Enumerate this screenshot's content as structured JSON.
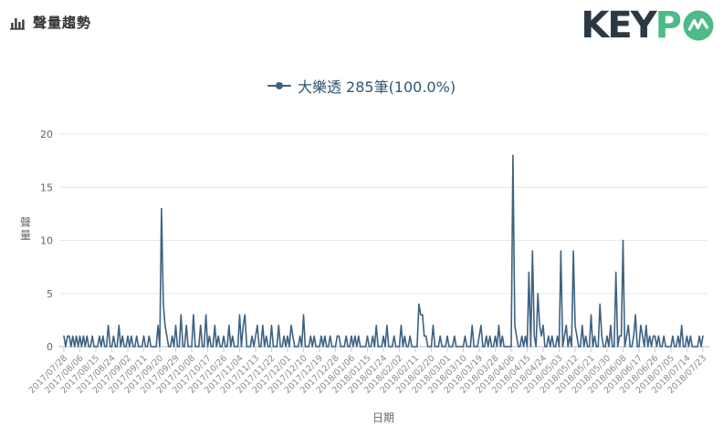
{
  "header": {
    "title": "聲量趨勢",
    "icon": "bar-chart-icon"
  },
  "logo": {
    "text_dark": "KEY",
    "text_green": "P",
    "green": "#4dba87",
    "dark": "#2c3944"
  },
  "legend": {
    "series_label": "大樂透 285筆(100.0%)",
    "marker_color": "#3d6282"
  },
  "colors": {
    "line": "#3d6282",
    "grid": "#e8e8e8",
    "axis": "#ccd6e0",
    "x_tick_label": "#8a8a8a",
    "y_tick_label": "#666666",
    "axis_title": "#666666"
  },
  "chart_data": {
    "type": "line",
    "title": "聲量趨勢",
    "xlabel": "日期",
    "ylabel": "聲量",
    "ylim": [
      0,
      20
    ],
    "y_ticks": [
      0,
      5,
      10,
      15,
      20
    ],
    "grid": true,
    "legend_position": "top-center",
    "x_start": "2017/07/28",
    "x_end": "2018/07/23",
    "tick_interval_days": 9,
    "x_tick_labels": [
      "2017/07/28",
      "2017/08/06",
      "2017/08/15",
      "2017/08/24",
      "2017/09/02",
      "2017/09/11",
      "2017/09/20",
      "2017/09/29",
      "2017/10/08",
      "2017/10/17",
      "2017/10/26",
      "2017/11/04",
      "2017/11/13",
      "2017/11/22",
      "2017/12/01",
      "2017/12/10",
      "2017/12/19",
      "2017/12/28",
      "2018/01/06",
      "2018/01/15",
      "2018/01/24",
      "2018/02/02",
      "2018/02/11",
      "2018/02/20",
      "2018/03/01",
      "2018/03/10",
      "2018/03/19",
      "2018/03/28",
      "2018/04/06",
      "2018/04/15",
      "2018/04/24",
      "2018/05/03",
      "2018/05/12",
      "2018/05/21",
      "2018/05/30",
      "2018/06/08",
      "2018/06/17",
      "2018/06/26",
      "2018/07/05",
      "2018/07/14",
      "2018/07/23"
    ],
    "series": [
      {
        "name": "大樂透",
        "count_label": "285筆(100.0%)",
        "total": 285,
        "color": "#3d6282",
        "values": [
          1,
          0,
          1,
          1,
          0,
          1,
          0,
          1,
          0,
          1,
          0,
          1,
          0,
          1,
          0,
          0,
          1,
          0,
          0,
          0,
          1,
          0,
          1,
          0,
          0,
          2,
          0,
          0,
          1,
          0,
          0,
          2,
          0,
          1,
          0,
          0,
          1,
          0,
          1,
          0,
          0,
          1,
          0,
          0,
          0,
          1,
          0,
          0,
          1,
          0,
          0,
          0,
          0,
          2,
          0,
          13,
          4,
          2,
          1,
          0,
          0,
          1,
          0,
          2,
          0,
          0,
          3,
          0,
          0,
          2,
          0,
          0,
          0,
          3,
          0,
          0,
          0,
          2,
          0,
          0,
          3,
          0,
          1,
          0,
          0,
          2,
          0,
          1,
          0,
          0,
          1,
          0,
          0,
          2,
          0,
          1,
          0,
          0,
          0,
          3,
          0,
          2,
          3,
          0,
          0,
          0,
          1,
          0,
          1,
          2,
          0,
          0,
          2,
          0,
          1,
          0,
          0,
          2,
          0,
          0,
          0,
          2,
          0,
          0,
          1,
          0,
          1,
          0,
          2,
          1,
          0,
          0,
          0,
          1,
          0,
          3,
          0,
          0,
          0,
          1,
          0,
          1,
          0,
          0,
          0,
          1,
          0,
          1,
          0,
          0,
          1,
          0,
          0,
          0,
          1,
          1,
          0,
          0,
          0,
          1,
          0,
          0,
          1,
          0,
          1,
          0,
          1,
          0,
          0,
          0,
          0,
          1,
          0,
          0,
          1,
          0,
          2,
          0,
          0,
          0,
          1,
          0,
          2,
          0,
          0,
          0,
          1,
          0,
          0,
          0,
          2,
          0,
          1,
          0,
          0,
          1,
          0,
          0,
          0,
          0,
          4,
          3,
          3,
          1,
          1,
          0,
          0,
          0,
          2,
          0,
          0,
          0,
          1,
          0,
          0,
          0,
          1,
          0,
          0,
          0,
          1,
          0,
          0,
          0,
          0,
          0,
          1,
          0,
          0,
          0,
          2,
          0,
          0,
          0,
          1,
          2,
          0,
          0,
          1,
          0,
          1,
          0,
          0,
          1,
          0,
          2,
          0,
          1,
          0,
          0,
          0,
          0,
          0,
          18,
          2,
          1,
          0,
          0,
          1,
          0,
          1,
          0,
          7,
          0,
          9,
          1,
          0,
          5,
          2,
          1,
          2,
          0,
          0,
          1,
          0,
          1,
          0,
          0,
          1,
          0,
          9,
          0,
          1,
          2,
          0,
          1,
          0,
          9,
          2,
          1,
          0,
          0,
          2,
          0,
          1,
          0,
          0,
          3,
          0,
          1,
          0,
          0,
          4,
          1,
          0,
          0,
          1,
          0,
          2,
          0,
          0,
          7,
          0,
          1,
          1,
          10,
          0,
          1,
          2,
          0,
          0,
          1,
          3,
          0,
          0,
          2,
          1,
          0,
          2,
          0,
          1,
          0,
          1,
          1,
          0,
          1,
          0,
          0,
          1,
          0,
          0,
          0,
          0,
          1,
          0,
          0,
          1,
          0,
          2,
          0,
          0,
          1,
          0,
          1,
          0,
          0,
          0,
          0,
          1,
          0,
          1
        ]
      }
    ]
  }
}
